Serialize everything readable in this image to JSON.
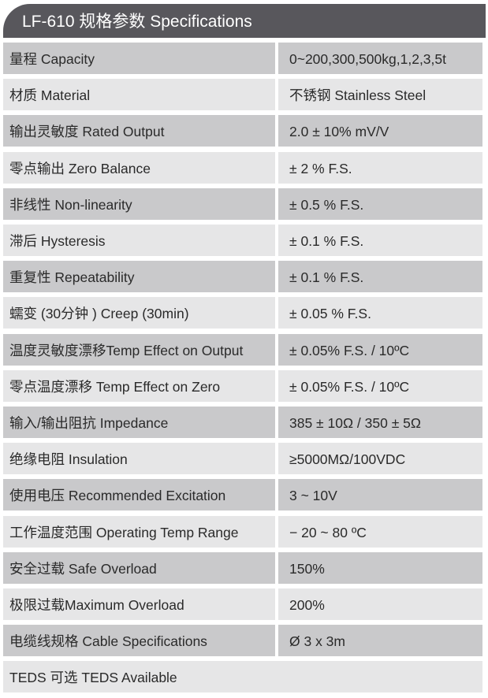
{
  "header": {
    "title": "LF-610 规格参数 Specifications"
  },
  "rows": [
    {
      "label": "量程 Capacity",
      "value": "0~200,300,500kg,1,2,3,5t"
    },
    {
      "label": "材质 Material",
      "value": "不锈钢 Stainless Steel"
    },
    {
      "label": "输出灵敏度 Rated Output",
      "value": "2.0 ± 10% mV/V"
    },
    {
      "label": "零点输出  Zero Balance",
      "value": "± 2 % F.S."
    },
    {
      "label": "非线性 Non-linearity",
      "value": "± 0.5 % F.S."
    },
    {
      "label": "滞后 Hysteresis",
      "value": "± 0.1 % F.S."
    },
    {
      "label": "重复性 Repeatability",
      "value": "± 0.1 % F.S."
    },
    {
      "label": "蠕变 (30分钟 ) Creep (30min)",
      "value": "± 0.05 % F.S."
    },
    {
      "label": "温度灵敏度漂移Temp Effect on Output",
      "value": "± 0.05% F.S. / 10ºC"
    },
    {
      "label": "零点温度漂移 Temp Effect on Zero",
      "value": "± 0.05% F.S. / 10ºC"
    },
    {
      "label": "输入/输出阻抗 Impedance",
      "value": "385 ± 10Ω / 350 ± 5Ω"
    },
    {
      "label": "绝缘电阻  Insulation",
      "value": "≥5000MΩ/100VDC"
    },
    {
      "label": "使用电压 Recommended Excitation",
      "value": "3 ~ 10V"
    },
    {
      "label": "工作温度范围 Operating Temp  Range",
      "value": "− 20 ~ 80 ºC"
    },
    {
      "label": "安全过载 Safe Overload",
      "value": "150%"
    },
    {
      "label": "极限过载Maximum Overload",
      "value": "200%"
    },
    {
      "label": "电缆线规格 Cable Specifications",
      "value": "Ø 3 x 3m"
    }
  ],
  "footer": {
    "label": "TEDS 可选 TEDS Available"
  },
  "colors": {
    "header": "#58575c",
    "row_dark": "#c9c9cb",
    "row_light": "#e6e6e7"
  }
}
